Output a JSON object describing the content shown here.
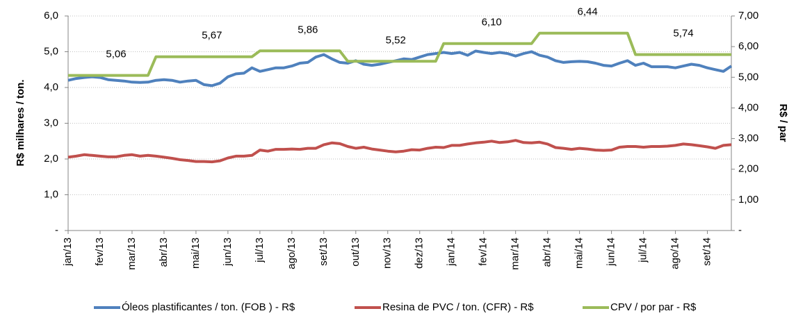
{
  "chart_data": {
    "type": "line",
    "y_label": "R$ milhares / ton.",
    "y2_label": "R$ / par",
    "categories": [
      "jan/13",
      null,
      null,
      null,
      "fev/13",
      null,
      null,
      null,
      "mar/13",
      null,
      null,
      null,
      "abr/13",
      null,
      null,
      null,
      "mai/13",
      null,
      null,
      null,
      "jun/13",
      null,
      null,
      null,
      "jul/13",
      null,
      null,
      null,
      "ago/13",
      null,
      null,
      null,
      "set/13",
      null,
      null,
      null,
      "out/13",
      null,
      null,
      null,
      "nov/13",
      null,
      null,
      null,
      "dez/13",
      null,
      null,
      null,
      "jan/14",
      null,
      null,
      null,
      "fev/14",
      null,
      null,
      null,
      "mar/14",
      null,
      null,
      null,
      "abr/14",
      null,
      null,
      null,
      "mai/14",
      null,
      null,
      null,
      "jun/14",
      null,
      null,
      null,
      "jul/14",
      null,
      null,
      null,
      "ago/14",
      null,
      null,
      null,
      "set/14",
      null,
      null,
      null
    ],
    "ylim": [
      0,
      6
    ],
    "yticks": [
      {
        "value": 0,
        "label": "-"
      },
      {
        "value": 1,
        "label": "1,0"
      },
      {
        "value": 2,
        "label": "2,0"
      },
      {
        "value": 3,
        "label": "3,0"
      },
      {
        "value": 4,
        "label": "4,0"
      },
      {
        "value": 5,
        "label": "5,0"
      },
      {
        "value": 6,
        "label": "6,0"
      }
    ],
    "y2lim": [
      0,
      7
    ],
    "y2ticks": [
      {
        "value": 0,
        "label": "-"
      },
      {
        "value": 1,
        "label": "1,00"
      },
      {
        "value": 2,
        "label": "2,00"
      },
      {
        "value": 3,
        "label": "3,00"
      },
      {
        "value": 4,
        "label": "4,00"
      },
      {
        "value": 5,
        "label": "5,00"
      },
      {
        "value": 6,
        "label": "6,00"
      },
      {
        "value": 7,
        "label": "7,00"
      }
    ],
    "grid": true,
    "legend": "bottom",
    "series": [
      {
        "name": "Óleos plastificantes / ton. (FOB ) - R$",
        "color": "#4f81bd",
        "values": [
          4.2,
          4.25,
          4.28,
          4.3,
          4.28,
          4.22,
          4.2,
          4.18,
          4.15,
          4.14,
          4.15,
          4.2,
          4.22,
          4.2,
          4.15,
          4.18,
          4.2,
          4.08,
          4.05,
          4.12,
          4.3,
          4.38,
          4.4,
          4.55,
          4.45,
          4.5,
          4.55,
          4.55,
          4.6,
          4.68,
          4.7,
          4.85,
          4.92,
          4.8,
          4.7,
          4.68,
          4.75,
          4.65,
          4.62,
          4.65,
          4.7,
          4.75,
          4.8,
          4.78,
          4.85,
          4.92,
          4.95,
          4.98,
          4.95,
          4.98,
          4.9,
          5.02,
          4.98,
          4.95,
          4.98,
          4.95,
          4.88,
          4.95,
          5.0,
          4.9,
          4.85,
          4.75,
          4.7,
          4.72,
          4.73,
          4.72,
          4.68,
          4.62,
          4.6,
          4.68,
          4.75,
          4.62,
          4.68,
          4.58,
          4.58,
          4.58,
          4.55,
          4.6,
          4.65,
          4.62,
          4.55,
          4.5,
          4.45,
          4.6
        ]
      },
      {
        "name": "Resina de PVC / ton. (CFR) - R$",
        "color": "#c0504d",
        "values": [
          2.05,
          2.08,
          2.12,
          2.1,
          2.08,
          2.06,
          2.06,
          2.1,
          2.12,
          2.08,
          2.1,
          2.08,
          2.05,
          2.02,
          1.98,
          1.96,
          1.93,
          1.93,
          1.92,
          1.95,
          2.03,
          2.08,
          2.08,
          2.1,
          2.25,
          2.22,
          2.27,
          2.27,
          2.28,
          2.27,
          2.3,
          2.3,
          2.4,
          2.45,
          2.43,
          2.35,
          2.3,
          2.33,
          2.28,
          2.25,
          2.22,
          2.2,
          2.22,
          2.26,
          2.25,
          2.3,
          2.33,
          2.32,
          2.38,
          2.38,
          2.42,
          2.45,
          2.47,
          2.5,
          2.46,
          2.48,
          2.52,
          2.46,
          2.45,
          2.47,
          2.42,
          2.32,
          2.3,
          2.27,
          2.3,
          2.28,
          2.25,
          2.24,
          2.25,
          2.33,
          2.35,
          2.35,
          2.33,
          2.35,
          2.35,
          2.36,
          2.38,
          2.42,
          2.4,
          2.37,
          2.34,
          2.3,
          2.38,
          2.4
        ]
      },
      {
        "name": "CPV / por par - R$",
        "color": "#9bbb59",
        "axis": "y2",
        "values": [
          5.06,
          5.06,
          5.06,
          5.06,
          5.06,
          5.06,
          5.06,
          5.06,
          5.06,
          5.06,
          5.06,
          5.67,
          5.67,
          5.67,
          5.67,
          5.67,
          5.67,
          5.67,
          5.67,
          5.67,
          5.67,
          5.67,
          5.67,
          5.67,
          5.86,
          5.86,
          5.86,
          5.86,
          5.86,
          5.86,
          5.86,
          5.86,
          5.86,
          5.86,
          5.86,
          5.52,
          5.52,
          5.52,
          5.52,
          5.52,
          5.52,
          5.52,
          5.52,
          5.52,
          5.52,
          5.52,
          5.52,
          6.1,
          6.1,
          6.1,
          6.1,
          6.1,
          6.1,
          6.1,
          6.1,
          6.1,
          6.1,
          6.1,
          6.1,
          6.44,
          6.44,
          6.44,
          6.44,
          6.44,
          6.44,
          6.44,
          6.44,
          6.44,
          6.44,
          6.44,
          6.44,
          5.74,
          5.74,
          5.74,
          5.74,
          5.74,
          5.74,
          5.74,
          5.74,
          5.74,
          5.74,
          5.74,
          5.74,
          5.74
        ],
        "value_labels": [
          null,
          null,
          null,
          null,
          null,
          null,
          "5,06",
          null,
          null,
          null,
          null,
          null,
          null,
          null,
          null,
          null,
          null,
          null,
          "5,67",
          null,
          null,
          null,
          null,
          null,
          null,
          null,
          null,
          null,
          null,
          null,
          "5,86",
          null,
          null,
          null,
          null,
          null,
          null,
          null,
          null,
          null,
          null,
          "5,52",
          null,
          null,
          null,
          null,
          null,
          null,
          null,
          null,
          null,
          null,
          null,
          "6,10",
          null,
          null,
          null,
          null,
          null,
          null,
          null,
          null,
          null,
          null,
          null,
          "6,44",
          null,
          null,
          null,
          null,
          null,
          null,
          null,
          null,
          null,
          null,
          null,
          "5,74",
          null,
          null,
          null,
          null,
          null,
          null
        ]
      }
    ]
  }
}
